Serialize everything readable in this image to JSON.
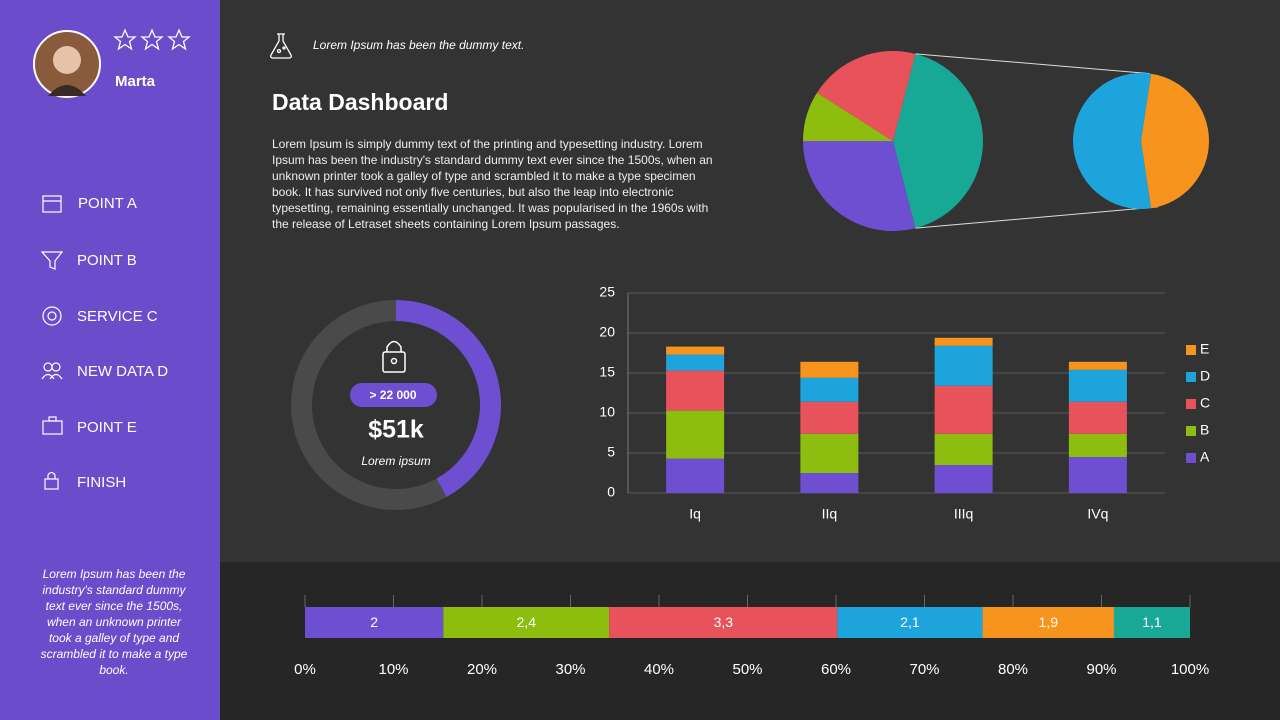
{
  "sidebar": {
    "user": "Marta",
    "menu": [
      "POINT A",
      "POINT B",
      "SERVICE C",
      "NEW DATA D",
      "POINT E",
      "FINISH"
    ],
    "note": "Lorem Ipsum has been the industry's standard dummy text ever since the 1500s, when an unknown printer took a galley of type and scrambled it to make a type book."
  },
  "header": {
    "tagline": "Lorem Ipsum has been the dummy text.",
    "title": "Data Dashboard",
    "text": "Lorem Ipsum is simply dummy text of the printing and typesetting industry. Lorem Ipsum has been the industry's standard dummy text ever since the 1500s, when an unknown printer took a galley of type and scrambled it to make a type specimen book. It has survived not only five centuries, but also the leap into electronic typesetting, remaining essentially unchanged. It was popularised in the 1960s with the release of Letraset sheets containing Lorem Ipsum passages."
  },
  "chart_data": [
    {
      "type": "pie_of_pie",
      "values": [
        29,
        9,
        20
      ],
      "colors": [
        "#6f4fd1",
        "#8cbd0f",
        "#e8525a"
      ],
      "other_color": "#17a996",
      "secondary_values": [
        23,
        19
      ],
      "secondary_colors": [
        "#1ea4dc",
        "#f7941d"
      ]
    },
    {
      "type": "donut",
      "values": [
        42,
        58
      ],
      "colors": [
        "#6f4fd1",
        "#4a4a4a"
      ],
      "badge": "> 22 000",
      "value_text": "$51k",
      "caption": "Lorem ipsum"
    },
    {
      "type": "stacked_bar",
      "categories": [
        "Iq",
        "IIq",
        "IIIq",
        "IVq"
      ],
      "series": [
        {
          "name": "A",
          "color": "#6f4fd1",
          "values": [
            4.3,
            2.5,
            3.5,
            4.5
          ]
        },
        {
          "name": "B",
          "color": "#8cbd0f",
          "values": [
            6,
            4.9,
            3.9,
            2.9
          ]
        },
        {
          "name": "C",
          "color": "#e8525a",
          "values": [
            5,
            4,
            6,
            4
          ]
        },
        {
          "name": "D",
          "color": "#1ea4dc",
          "values": [
            2,
            3,
            5,
            4
          ]
        },
        {
          "name": "E",
          "color": "#f7941d",
          "values": [
            1,
            2,
            1,
            1
          ]
        }
      ],
      "ylim": [
        0,
        25
      ],
      "yticks": [
        0,
        5,
        10,
        15,
        20,
        25
      ],
      "grid": true,
      "legend": "right"
    },
    {
      "type": "stacked_bar_100",
      "orientation": "horizontal",
      "values": [
        2,
        2.4,
        3.3,
        2.1,
        1.9,
        1.1
      ],
      "value_labels": [
        "2",
        "2,4",
        "3,3",
        "2,1",
        "1,9",
        "1,1"
      ],
      "colors": [
        "#6f4fd1",
        "#8cbd0f",
        "#e8525a",
        "#1ea4dc",
        "#f7941d",
        "#17a996"
      ],
      "xlim": [
        0,
        100
      ],
      "xticks": [
        {
          "value": 0,
          "label": "0%"
        },
        {
          "value": 10,
          "label": "10%"
        },
        {
          "value": 20,
          "label": "20%"
        },
        {
          "value": 30,
          "label": "30%"
        },
        {
          "value": 40,
          "label": "40%"
        },
        {
          "value": 50,
          "label": "50%"
        },
        {
          "value": 60,
          "label": "60%"
        },
        {
          "value": 70,
          "label": "70%"
        },
        {
          "value": 80,
          "label": "80%"
        },
        {
          "value": 90,
          "label": "90%"
        },
        {
          "value": 100,
          "label": "100%"
        }
      ]
    }
  ]
}
